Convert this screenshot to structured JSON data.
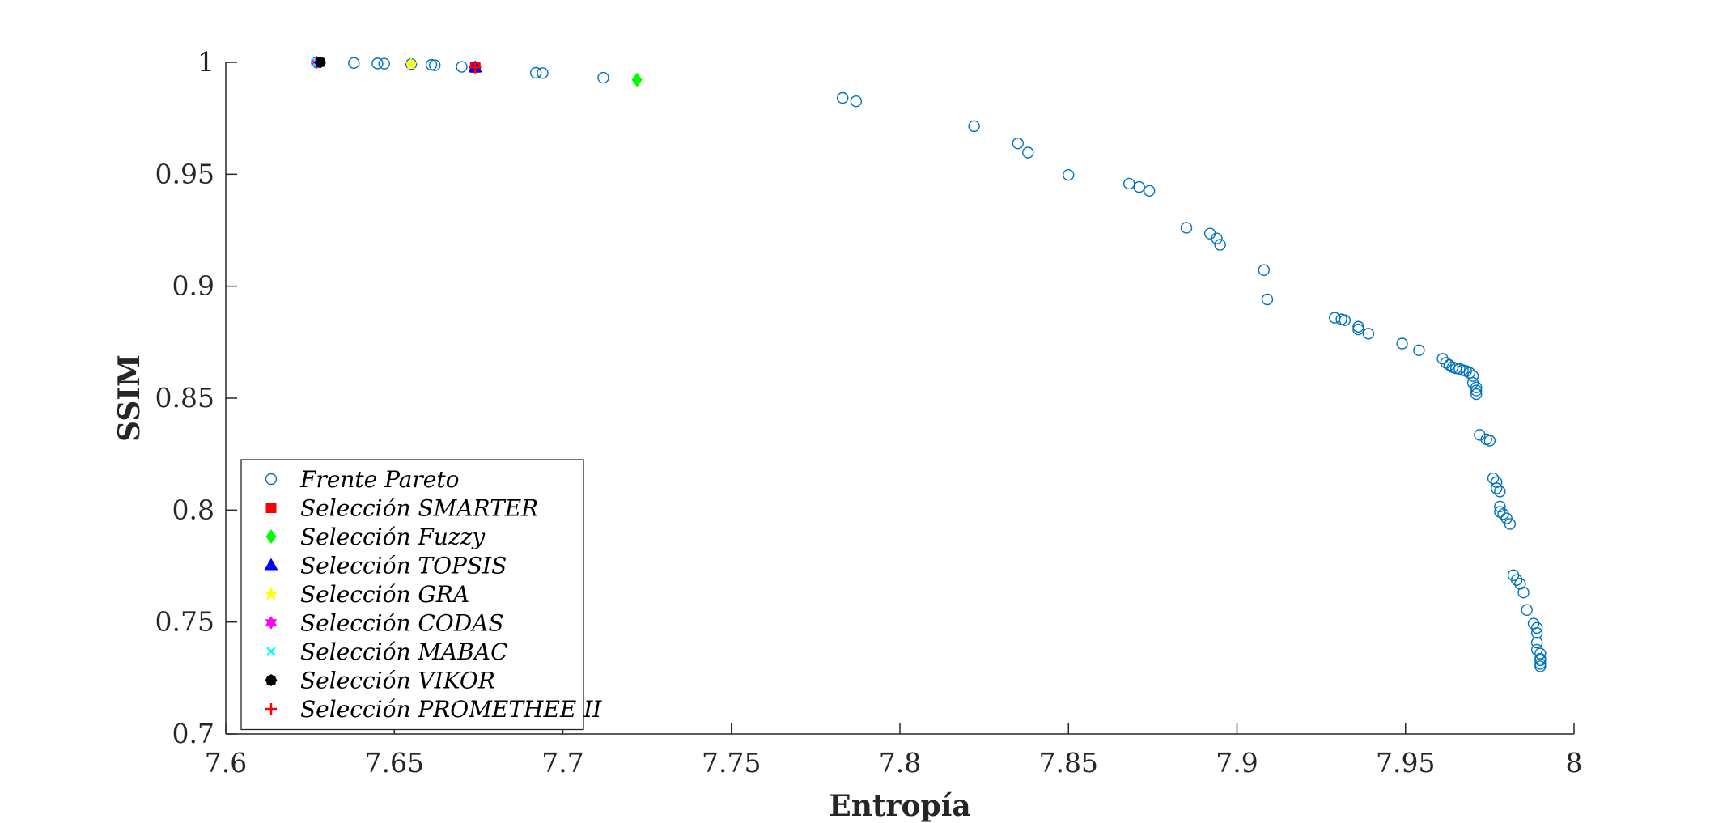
{
  "chart_data": {
    "type": "scatter",
    "xlabel": "Entropía",
    "ylabel": "SSIM",
    "xlim": [
      7.6,
      8.0
    ],
    "ylim": [
      0.7,
      1.0
    ],
    "xticks": [
      "7.6",
      "7.65",
      "7.7",
      "7.75",
      "7.8",
      "7.85",
      "7.9",
      "7.95",
      "8"
    ],
    "yticks": [
      "0.7",
      "0.75",
      "0.8",
      "0.85",
      "0.9",
      "0.95",
      "1"
    ],
    "legend_position": "bottom-left",
    "grid": false,
    "series": [
      {
        "name": "Frente Pareto",
        "marker": "circle",
        "color": "#0072BD",
        "x": [
          7.627,
          7.638,
          7.645,
          7.647,
          7.655,
          7.661,
          7.662,
          7.67,
          7.674,
          7.692,
          7.694,
          7.712,
          7.783,
          7.787,
          7.822,
          7.835,
          7.838,
          7.85,
          7.868,
          7.871,
          7.874,
          7.885,
          7.892,
          7.894,
          7.895,
          7.908,
          7.909,
          7.929,
          7.931,
          7.932,
          7.936,
          7.936,
          7.939,
          7.949,
          7.954,
          7.961,
          7.962,
          7.963,
          7.964,
          7.965,
          7.966,
          7.967,
          7.968,
          7.969,
          7.97,
          7.97,
          7.971,
          7.971,
          7.971,
          7.972,
          7.974,
          7.975,
          7.976,
          7.977,
          7.977,
          7.978,
          7.978,
          7.978,
          7.979,
          7.98,
          7.981,
          7.982,
          7.983,
          7.984,
          7.985,
          7.986,
          7.988,
          7.989,
          7.989,
          7.989,
          7.989,
          7.99,
          7.99,
          7.99,
          7.99,
          7.99
        ],
        "y": [
          1.0,
          0.9997,
          0.9995,
          0.9994,
          0.9992,
          0.9989,
          0.9987,
          0.998,
          0.9977,
          0.9953,
          0.9952,
          0.9931,
          0.9841,
          0.9826,
          0.9715,
          0.9638,
          0.9597,
          0.9497,
          0.9458,
          0.9443,
          0.9426,
          0.9261,
          0.9235,
          0.9213,
          0.9185,
          0.9072,
          0.8941,
          0.8859,
          0.8852,
          0.8848,
          0.8819,
          0.8807,
          0.8788,
          0.8744,
          0.8714,
          0.8676,
          0.8658,
          0.8648,
          0.8638,
          0.8633,
          0.8631,
          0.8625,
          0.8621,
          0.8613,
          0.8599,
          0.8568,
          0.8548,
          0.8534,
          0.8518,
          0.8336,
          0.8316,
          0.831,
          0.8142,
          0.8125,
          0.8097,
          0.8083,
          0.8016,
          0.7992,
          0.7982,
          0.7963,
          0.7938,
          0.7709,
          0.7688,
          0.7671,
          0.7632,
          0.7554,
          0.7493,
          0.7474,
          0.7451,
          0.7408,
          0.7376,
          0.7359,
          0.7336,
          0.7329,
          0.7313,
          0.7302
        ]
      },
      {
        "name": "Selección SMARTER",
        "marker": "square",
        "color": "#FF0000",
        "x": [
          7.674
        ],
        "y": [
          0.9977
        ]
      },
      {
        "name": "Selección Fuzzy",
        "marker": "diamond",
        "color": "#00FF00",
        "x": [
          7.722
        ],
        "y": [
          0.9922
        ]
      },
      {
        "name": "Selección TOPSIS",
        "marker": "triangle",
        "color": "#0000FF",
        "x": [
          7.674
        ],
        "y": [
          0.9977
        ]
      },
      {
        "name": "Selección GRA",
        "marker": "star",
        "color": "#FFFF00",
        "x": [
          7.655
        ],
        "y": [
          0.9992
        ]
      },
      {
        "name": "Selección CODAS",
        "marker": "hexagram",
        "color": "#FF00FF",
        "x": [
          7.627
        ],
        "y": [
          1.0
        ]
      },
      {
        "name": "Selección MABAC",
        "marker": "x",
        "color": "#00FFFF",
        "x": [
          7.627
        ],
        "y": [
          1.0
        ]
      },
      {
        "name": "Selección VIKOR",
        "marker": "filled-circle",
        "color": "#000000",
        "x": [
          7.628
        ],
        "y": [
          1.0
        ]
      },
      {
        "name": "Selección PROMETHEE II",
        "marker": "plus",
        "color": "#FF0000",
        "x": [
          7.674
        ],
        "y": [
          0.9977
        ]
      }
    ]
  }
}
